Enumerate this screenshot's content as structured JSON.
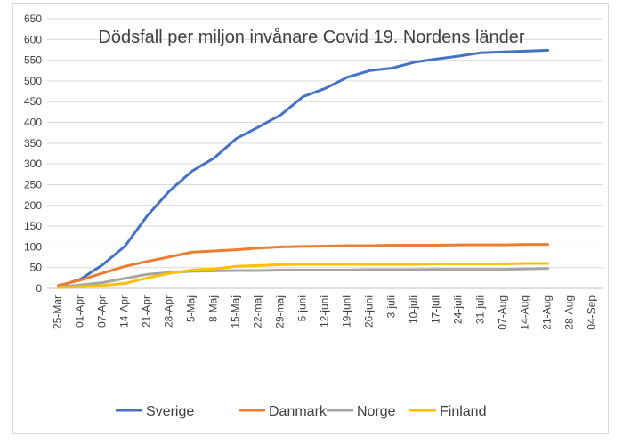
{
  "chart_data": {
    "type": "line",
    "title": "Dödsfall per miljon invånare Covid 19. Nordens länder",
    "xlabel": "",
    "ylabel": "",
    "ylim": [
      0,
      650
    ],
    "y_ticks": [
      "0",
      "50",
      "100",
      "150",
      "200",
      "250",
      "300",
      "350",
      "400",
      "450",
      "500",
      "550",
      "600",
      "650"
    ],
    "categories": [
      "25-Mar",
      "01-Apr",
      "07-Apr",
      "14-Apr",
      "21-Apr",
      "28-Apr",
      "5-Maj",
      "8-Maj",
      "15-Maj",
      "22-maj",
      "29-maj",
      "5-juni",
      "12-juni",
      "19-juni",
      "26-juni",
      "3-juli",
      "10-juli",
      "17-juli",
      "24-juli",
      "31-juli",
      "07-Aug",
      "14-Aug",
      "21-Aug",
      "28-Aug",
      "04-Sep"
    ],
    "grid": true,
    "legend_position": "bottom",
    "series": [
      {
        "name": "Sverige",
        "color": "#4472c4",
        "values": [
          5,
          22,
          57,
          102,
          175,
          235,
          282,
          314,
          361,
          389,
          418,
          462,
          482,
          509,
          525,
          531,
          545,
          553,
          560,
          568,
          570,
          572,
          574,
          null,
          null
        ]
      },
      {
        "name": "Danmark",
        "color": "#ed7d31",
        "values": [
          7,
          20,
          37,
          53,
          65,
          76,
          87,
          90,
          93,
          97,
          100,
          101,
          102,
          103,
          103,
          104,
          104,
          104,
          105,
          105,
          105,
          106,
          106,
          null,
          null
        ]
      },
      {
        "name": "Norge",
        "color": "#a5a5a5",
        "values": [
          3,
          8,
          14,
          24,
          34,
          38,
          41,
          42,
          43,
          43,
          44,
          44,
          44,
          44,
          45,
          45,
          45,
          46,
          46,
          46,
          46,
          47,
          48,
          null,
          null
        ]
      },
      {
        "name": "Finland",
        "color": "#ffc000",
        "values": [
          2,
          4,
          7,
          12,
          25,
          36,
          44,
          47,
          53,
          55,
          57,
          58,
          58,
          58,
          58,
          58,
          58,
          59,
          59,
          59,
          59,
          60,
          60,
          null,
          null
        ]
      }
    ]
  }
}
